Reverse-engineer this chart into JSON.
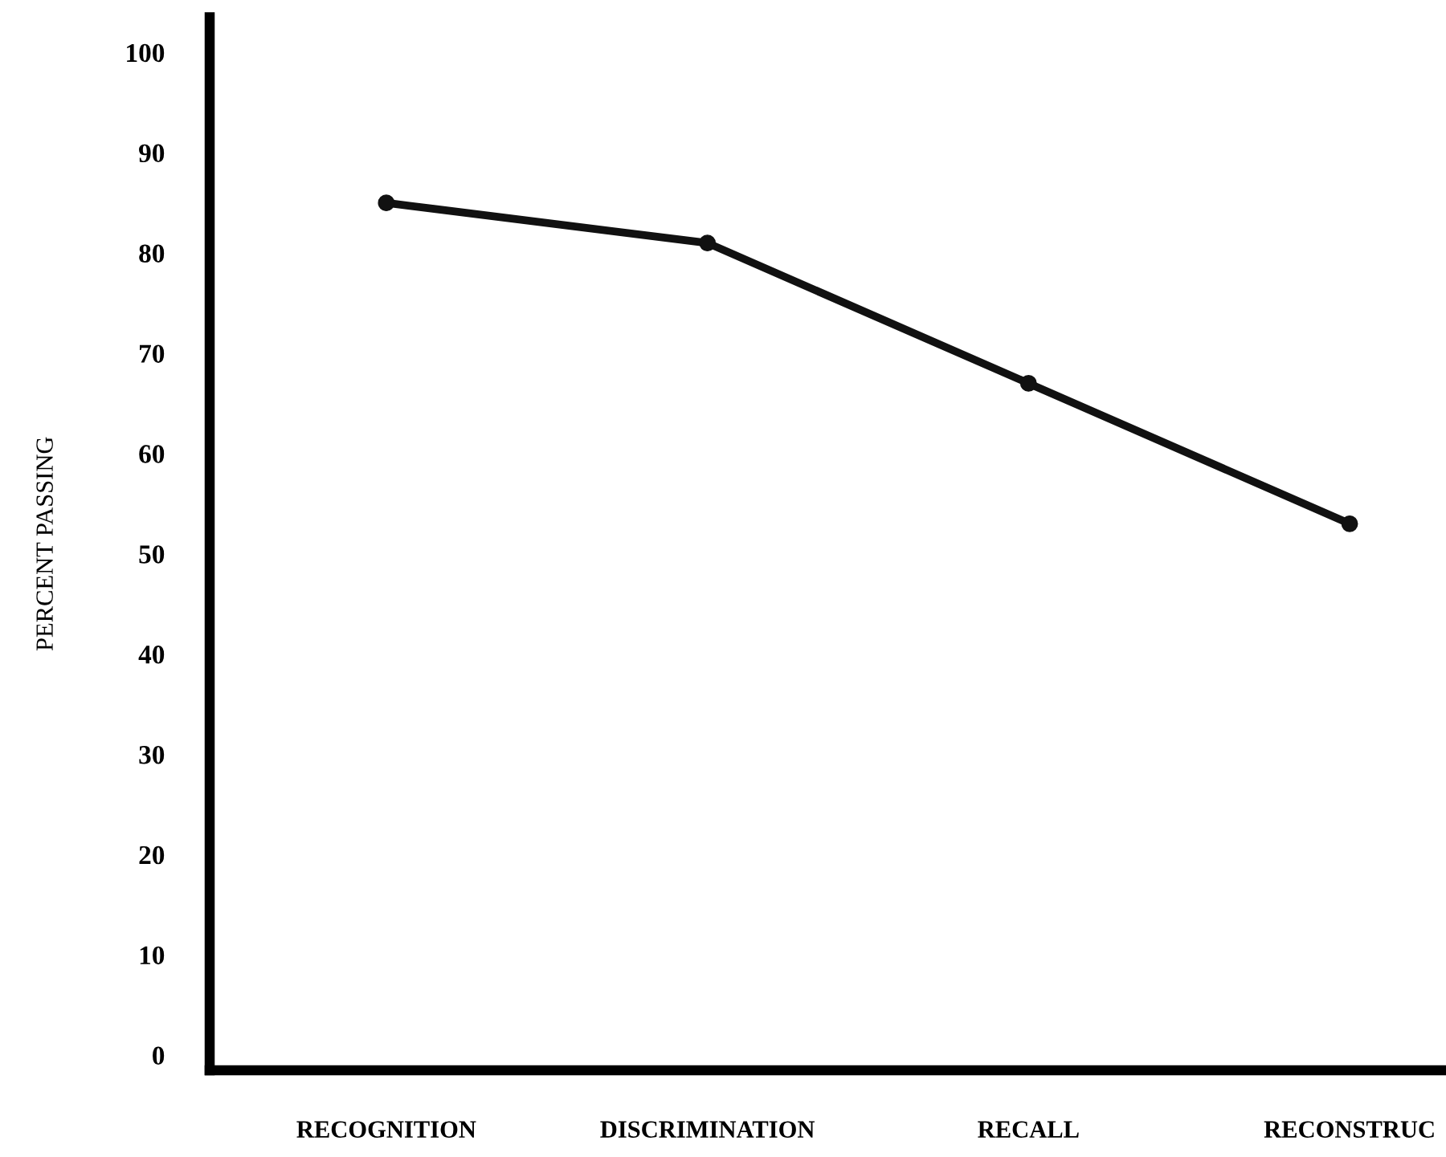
{
  "chart_data": {
    "type": "line",
    "ylabel": "PERCENT PASSING",
    "categories": [
      "RECOGNITION",
      "DISCRIMINATION",
      "RECALL",
      "RECONSTRUC"
    ],
    "series": [
      {
        "color": "#111111",
        "values": [
          85,
          81,
          67,
          53
        ]
      }
    ],
    "ylim": [
      -1.5,
      103.5
    ],
    "yticks": [
      0,
      10,
      20,
      30,
      40,
      50,
      60,
      70,
      80,
      90,
      100
    ],
    "marker": "circle",
    "line_style": "solid",
    "grid": false,
    "legend": false
  }
}
